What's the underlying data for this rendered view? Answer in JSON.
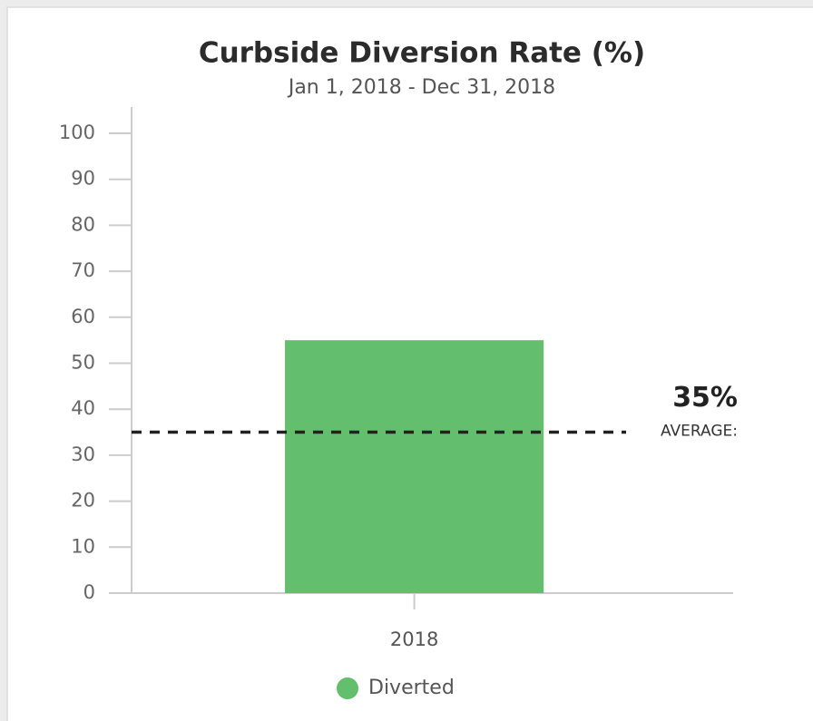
{
  "chart_data": {
    "type": "bar",
    "title": "Curbside Diversion Rate (%)",
    "subtitle": "Jan 1, 2018 - Dec 31, 2018",
    "categories": [
      "2018"
    ],
    "series": [
      {
        "name": "Diverted",
        "color": "#63be6e",
        "values": [
          55
        ]
      }
    ],
    "ylim": [
      0,
      100
    ],
    "yticks": [
      0,
      10,
      20,
      30,
      40,
      50,
      60,
      70,
      80,
      90,
      100
    ],
    "annotations": [
      {
        "text": "AVERAGE:",
        "value": 35,
        "label": "35%"
      }
    ],
    "grid": false,
    "legend": "bottom"
  }
}
